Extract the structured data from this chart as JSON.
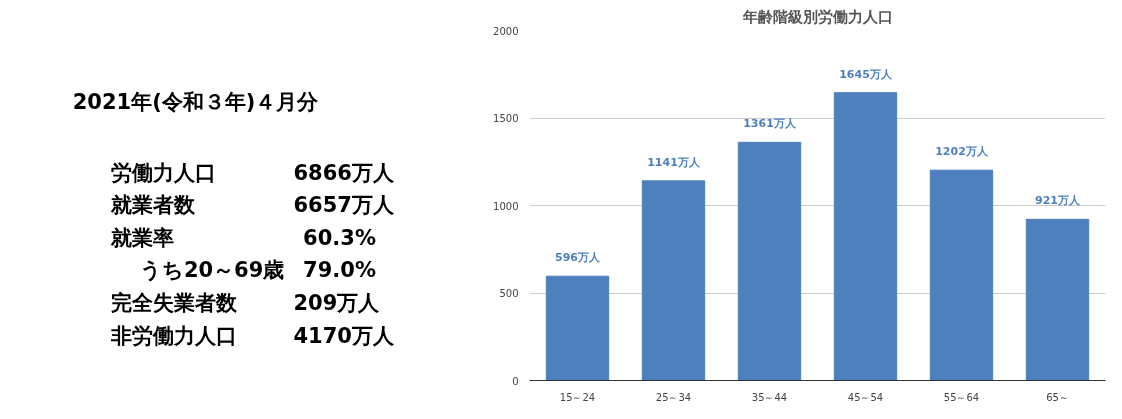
{
  "chart_data": [
    {
      "type": "other",
      "title": "2021年(令和３年)４月分",
      "annotations": [
        "労働力人口",
        "6866万人",
        "就業者数",
        "6657万人",
        "就業率",
        "60.3%",
        "うち20～69歳",
        "79.0%",
        "完全失業者数",
        "209万人",
        "非労働力人口",
        "4170万人"
      ]
    },
    {
      "type": "bar",
      "title": "年齢階級別労働力人口",
      "categories": [
        "15～24",
        "25～34",
        "35～44",
        "45～54",
        "55～64",
        "65～"
      ],
      "values": [
        596,
        1141,
        1361,
        1645,
        1202,
        921
      ],
      "value_labels": [
        "596万人",
        "1141万人",
        "1361万人",
        "1645万人",
        "1202万人",
        "921万人"
      ],
      "color": "#4e7fbe",
      "ylim": [
        0,
        2000
      ],
      "yticks": [
        0,
        500,
        1000,
        1500,
        2000
      ],
      "grid": "y"
    }
  ]
}
